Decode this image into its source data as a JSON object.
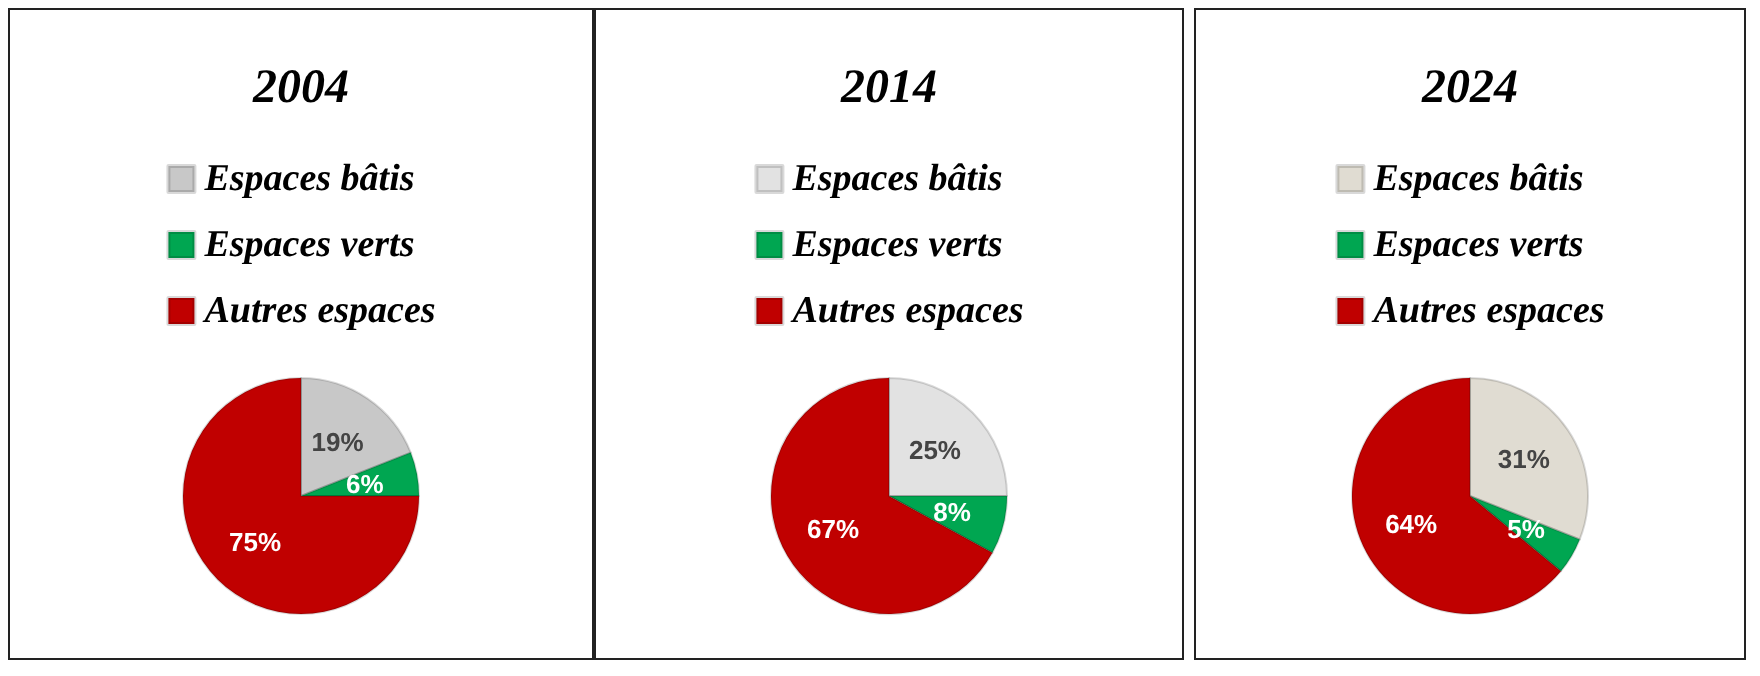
{
  "chart_data": [
    {
      "type": "pie",
      "title": "2004",
      "categories": [
        "Espaces bâtis",
        "Espaces verts",
        "Autres espaces"
      ],
      "values": [
        19,
        6,
        75
      ],
      "value_labels": [
        "19%",
        "6%",
        "75%"
      ],
      "colors": [
        "#c8c8c8",
        "#00a651",
        "#c00000"
      ],
      "legend": "top"
    },
    {
      "type": "pie",
      "title": "2014",
      "categories": [
        "Espaces bâtis",
        "Espaces verts",
        "Autres espaces"
      ],
      "values": [
        25,
        8,
        67
      ],
      "value_labels": [
        "25%",
        "8%",
        "67%"
      ],
      "colors": [
        "#e2e2e2",
        "#00a651",
        "#c00000"
      ],
      "legend": "top"
    },
    {
      "type": "pie",
      "title": "2024",
      "categories": [
        "Espaces bâtis",
        "Espaces verts",
        "Autres espaces"
      ],
      "values": [
        31,
        5,
        64
      ],
      "value_labels": [
        "31%",
        "5%",
        "64%"
      ],
      "colors": [
        "#e0dcd2",
        "#00a651",
        "#c00000"
      ],
      "legend": "top"
    }
  ]
}
